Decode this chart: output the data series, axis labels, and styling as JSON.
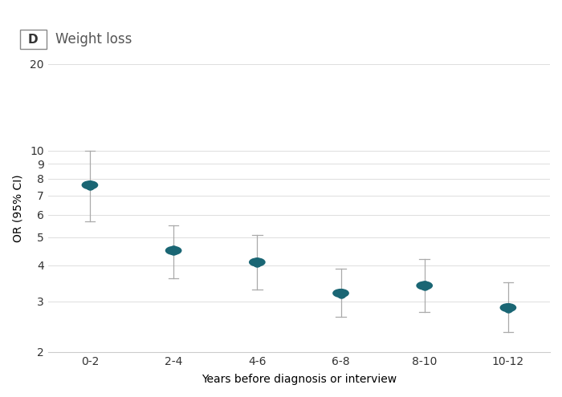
{
  "title_label": "D",
  "title_text": "Weight loss",
  "xlabel": "Years before diagnosis or interview",
  "ylabel": "OR (95% CI)",
  "categories": [
    "0-2",
    "2-4",
    "4-6",
    "6-8",
    "8-10",
    "10-12"
  ],
  "or_values": [
    7.6,
    4.5,
    4.1,
    3.2,
    3.4,
    2.85
  ],
  "ci_lower": [
    5.7,
    3.6,
    3.3,
    2.65,
    2.75,
    2.35
  ],
  "ci_upper": [
    10.0,
    5.5,
    5.1,
    3.9,
    4.2,
    3.5
  ],
  "dot_color": "#1a6674",
  "line_color": "#aaaaaa",
  "grid_color": "#dddddd",
  "bg_color": "#ffffff",
  "ylim": [
    2,
    20
  ],
  "yticks": [
    2,
    3,
    4,
    5,
    6,
    7,
    8,
    9,
    10,
    20
  ],
  "figsize": [
    7.0,
    4.95
  ],
  "dpi": 100,
  "title_fontsize": 13,
  "label_fontsize": 10,
  "tick_fontsize": 10
}
